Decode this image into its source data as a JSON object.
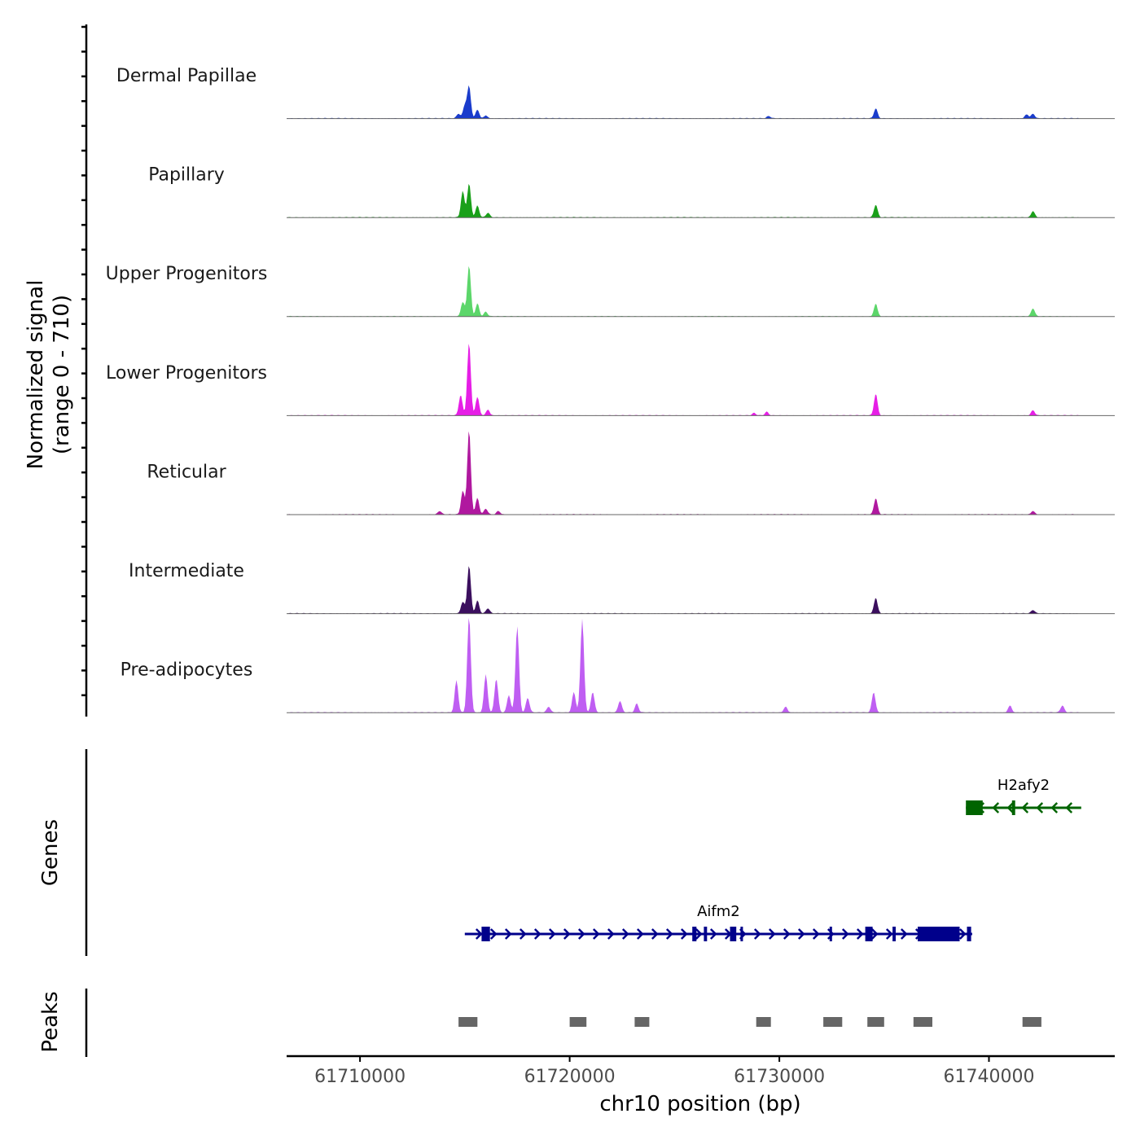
{
  "chart_data": {
    "type": "area",
    "chromosome": "chr10",
    "xlim": [
      61706500,
      61746000
    ],
    "y_axis_label": "Normalized signal",
    "y_axis_range_label": "(range 0 - 710)",
    "y_range": [
      0,
      710
    ],
    "x_axis_label": "chr10 position (bp)",
    "x_ticks": [
      61710000,
      61720000,
      61730000,
      61740000
    ],
    "x_tick_labels": [
      "61710000",
      "61720000",
      "61730000",
      "61740000"
    ],
    "tracks": [
      {
        "name": "Dermal Papillae",
        "color": "#1a3ccc",
        "peaks": [
          [
            61714700,
            0.08
          ],
          [
            61715000,
            0.22
          ],
          [
            61715200,
            0.55
          ],
          [
            61715600,
            0.15
          ],
          [
            61716000,
            0.05
          ],
          [
            61729500,
            0.04
          ],
          [
            61734600,
            0.17
          ],
          [
            61741800,
            0.07
          ],
          [
            61742100,
            0.08
          ]
        ]
      },
      {
        "name": "Papillary",
        "color": "#1aa01a",
        "peaks": [
          [
            61714900,
            0.45
          ],
          [
            61715200,
            0.58
          ],
          [
            61715600,
            0.2
          ],
          [
            61716100,
            0.08
          ],
          [
            61734600,
            0.22
          ],
          [
            61742100,
            0.11
          ]
        ]
      },
      {
        "name": "Upper Progenitors",
        "color": "#5cd66a",
        "peaks": [
          [
            61714900,
            0.25
          ],
          [
            61715200,
            0.88
          ],
          [
            61715600,
            0.22
          ],
          [
            61716000,
            0.08
          ],
          [
            61734600,
            0.22
          ],
          [
            61742100,
            0.14
          ]
        ]
      },
      {
        "name": "Lower Progenitors",
        "color": "#e61ee6",
        "peaks": [
          [
            61714800,
            0.35
          ],
          [
            61715200,
            1.25
          ],
          [
            61715600,
            0.32
          ],
          [
            61716100,
            0.1
          ],
          [
            61728800,
            0.04
          ],
          [
            61729400,
            0.06
          ],
          [
            61734600,
            0.37
          ],
          [
            61742100,
            0.09
          ]
        ]
      },
      {
        "name": "Reticular",
        "color": "#b0189f",
        "peaks": [
          [
            61713800,
            0.06
          ],
          [
            61714900,
            0.4
          ],
          [
            61715200,
            1.45
          ],
          [
            61715600,
            0.28
          ],
          [
            61716000,
            0.1
          ],
          [
            61716600,
            0.06
          ],
          [
            61734600,
            0.28
          ],
          [
            61742100,
            0.06
          ]
        ]
      },
      {
        "name": "Intermediate",
        "color": "#3b0f5e",
        "peaks": [
          [
            61714900,
            0.2
          ],
          [
            61715200,
            0.83
          ],
          [
            61715600,
            0.22
          ],
          [
            61716100,
            0.09
          ],
          [
            61734600,
            0.27
          ],
          [
            61742100,
            0.06
          ]
        ]
      },
      {
        "name": "Pre-adipocytes",
        "color": "#bf5ef2",
        "peaks": [
          [
            61714600,
            0.55
          ],
          [
            61715200,
            1.65
          ],
          [
            61716000,
            0.65
          ],
          [
            61716500,
            0.58
          ],
          [
            61717100,
            0.3
          ],
          [
            61717500,
            1.48
          ],
          [
            61718000,
            0.25
          ],
          [
            61719000,
            0.1
          ],
          [
            61720200,
            0.35
          ],
          [
            61720600,
            1.6
          ],
          [
            61721100,
            0.35
          ],
          [
            61722400,
            0.2
          ],
          [
            61723200,
            0.15
          ],
          [
            61730300,
            0.1
          ],
          [
            61734500,
            0.35
          ],
          [
            61741000,
            0.12
          ],
          [
            61743500,
            0.12
          ]
        ]
      }
    ],
    "genes": [
      {
        "name": "H2afy2",
        "strand": "-",
        "color": "#006400",
        "start": 61738900,
        "end": 61744400,
        "exons": [
          [
            61738900,
            61739700
          ],
          [
            61741100,
            61741250
          ]
        ]
      },
      {
        "name": "Aifm2",
        "strand": "+",
        "color": "#00008b",
        "start": 61715000,
        "end": 61739200,
        "exons": [
          [
            61715800,
            61716200
          ],
          [
            61725850,
            61726050
          ],
          [
            61726400,
            61726550
          ],
          [
            61727650,
            61727950
          ],
          [
            61728150,
            61728250
          ],
          [
            61732400,
            61732500
          ],
          [
            61734100,
            61734450
          ],
          [
            61735400,
            61735550
          ],
          [
            61736600,
            61738600
          ],
          [
            61738950,
            61739150
          ]
        ]
      }
    ],
    "peak_regions": [
      [
        61714700,
        61715600
      ],
      [
        61720000,
        61720800
      ],
      [
        61723100,
        61723800
      ],
      [
        61728900,
        61729600
      ],
      [
        61732100,
        61733000
      ],
      [
        61734200,
        61735000
      ],
      [
        61736400,
        61737300
      ],
      [
        61741600,
        61742500
      ]
    ]
  }
}
